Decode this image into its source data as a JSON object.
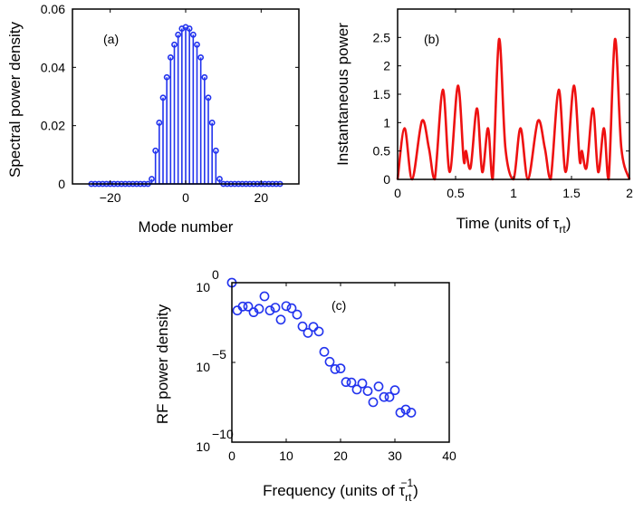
{
  "chart_data": [
    {
      "type": "stem",
      "annotation": "(a)",
      "xlabel": "Mode number",
      "ylabel": "Spectral power density",
      "xlim": [
        -30,
        30
      ],
      "ylim": [
        0,
        0.06
      ],
      "xticks": [
        -20,
        0,
        20
      ],
      "xtick_labels": [
        "−20",
        "0",
        "20"
      ],
      "yticks": [
        0,
        0.02,
        0.04,
        0.06
      ],
      "ytick_labels": [
        "0",
        "0.02",
        "0.04",
        "0.06"
      ],
      "color": "#2233ee",
      "x": [
        -25,
        -24,
        -23,
        -22,
        -21,
        -20,
        -19,
        -18,
        -17,
        -16,
        -15,
        -14,
        -13,
        -12,
        -11,
        -10,
        -9,
        -8,
        -7,
        -6,
        -5,
        -4,
        -3,
        -2,
        -1,
        0,
        1,
        2,
        3,
        4,
        5,
        6,
        7,
        8,
        9,
        10,
        11,
        12,
        13,
        14,
        15,
        16,
        17,
        18,
        19,
        20,
        21,
        22,
        23,
        24,
        25
      ],
      "y": [
        0,
        0,
        0,
        0,
        0,
        0,
        0,
        0,
        0,
        0,
        0,
        0,
        0,
        0,
        0,
        0,
        0.0017,
        0.0114,
        0.021,
        0.0296,
        0.0366,
        0.0434,
        0.0478,
        0.0512,
        0.0533,
        0.0538,
        0.0533,
        0.0512,
        0.0478,
        0.0434,
        0.0366,
        0.0296,
        0.021,
        0.0114,
        0.0017,
        0,
        0,
        0,
        0,
        0,
        0,
        0,
        0,
        0,
        0,
        0,
        0,
        0,
        0,
        0,
        0
      ]
    },
    {
      "type": "line",
      "annotation": "(b)",
      "xlabel": {
        "main": "Time (units of τ",
        "sub": "rt",
        "close": ")"
      },
      "ylabel": "Instantaneous power",
      "xlim": [
        0,
        2
      ],
      "ylim": [
        0,
        3
      ],
      "xticks": [
        0,
        0.5,
        1,
        1.5,
        2
      ],
      "xtick_labels": [
        "0",
        "0.5",
        "1",
        "1.5",
        "2"
      ],
      "yticks": [
        0,
        0.5,
        1,
        1.5,
        2,
        2.5
      ],
      "ytick_labels": [
        "0",
        "0.5",
        "1",
        "1.5",
        "2",
        "2.5"
      ],
      "color": "#ee1111",
      "x": [
        0,
        0.06,
        0.125,
        0.21,
        0.27,
        0.32,
        0.39,
        0.45,
        0.52,
        0.57,
        0.59,
        0.63,
        0.685,
        0.73,
        0.78,
        0.82,
        0.875,
        0.93,
        1.0,
        1.06,
        1.125,
        1.21,
        1.27,
        1.32,
        1.39,
        1.45,
        1.52,
        1.57,
        1.59,
        1.63,
        1.685,
        1.73,
        1.78,
        1.82,
        1.875,
        1.93,
        2.0
      ],
      "y": [
        0,
        0.9,
        0,
        1.03,
        0.55,
        0,
        1.58,
        0.13,
        1.65,
        0.34,
        0.5,
        0.21,
        1.25,
        0.13,
        0.9,
        0,
        2.47,
        0.55,
        0,
        0.9,
        0,
        1.03,
        0.55,
        0,
        1.58,
        0.13,
        1.65,
        0.34,
        0.5,
        0.21,
        1.25,
        0.13,
        0.9,
        0,
        2.47,
        0.55,
        0
      ]
    },
    {
      "type": "scatter",
      "annotation": "(c)",
      "xlabel": {
        "main": "Frequency (units of τ",
        "sub": "rt",
        "sup": "−1",
        "close": ")"
      },
      "ylabel": "RF power density",
      "xlim": [
        0,
        40
      ],
      "ylim": [
        1e-10,
        1
      ],
      "yscale": "log",
      "xticks": [
        0,
        10,
        20,
        30,
        40
      ],
      "xtick_labels": [
        "0",
        "10",
        "20",
        "30",
        "40"
      ],
      "yticks": [
        1,
        1e-05,
        1e-10
      ],
      "ytick_labels": [
        {
          "base": "10",
          "exp": "0"
        },
        {
          "base": "10",
          "exp": "−5"
        },
        {
          "base": "10",
          "exp": "−10"
        }
      ],
      "color": "#2233ee",
      "x": [
        0,
        1,
        2,
        3,
        4,
        5,
        6,
        7,
        8,
        9,
        10,
        11,
        12,
        13,
        14,
        15,
        16,
        17,
        18,
        19,
        20,
        21,
        22,
        23,
        24,
        25,
        26,
        27,
        28,
        29,
        30,
        31,
        32,
        33
      ],
      "y": [
        1,
        0.018,
        0.032,
        0.032,
        0.014,
        0.023,
        0.14,
        0.018,
        0.027,
        0.0048,
        0.034,
        0.025,
        0.01,
        0.0018,
        0.00071,
        0.0017,
        0.00087,
        4.6e-05,
        1.1e-05,
        3.8e-06,
        4.2e-06,
        5.9e-07,
        5.5e-07,
        2e-07,
        4.8e-07,
        1.6e-07,
        3.2e-08,
        3.1e-07,
        6.8e-08,
        6.8e-08,
        1.8e-07,
        7.1e-09,
        1.1e-08,
        7.1e-09
      ]
    }
  ]
}
